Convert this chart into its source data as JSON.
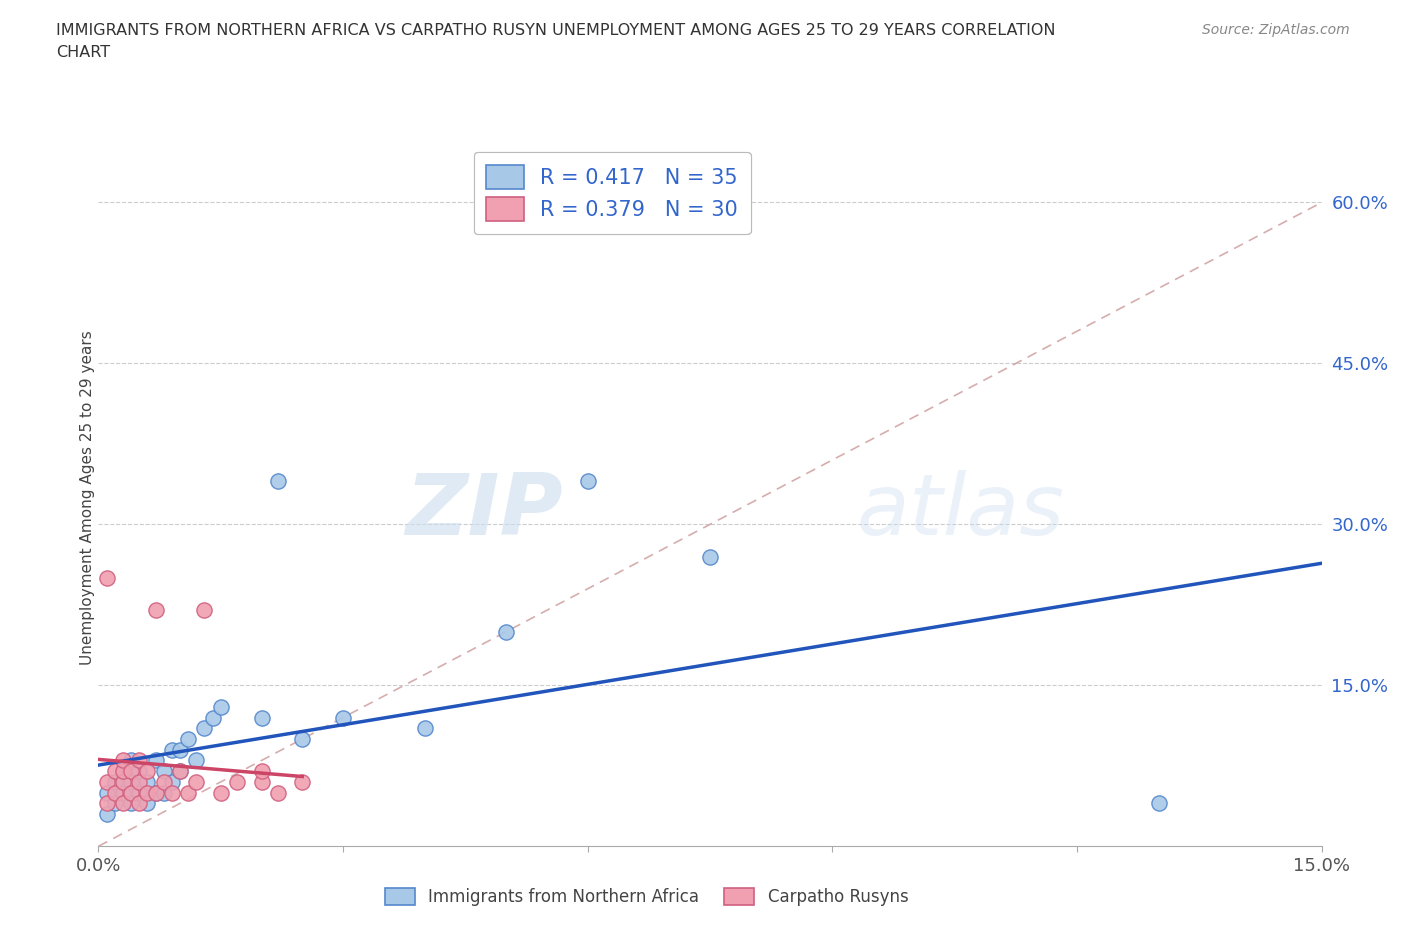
{
  "title_line1": "IMMIGRANTS FROM NORTHERN AFRICA VS CARPATHO RUSYN UNEMPLOYMENT AMONG AGES 25 TO 29 YEARS CORRELATION",
  "title_line2": "CHART",
  "source": "Source: ZipAtlas.com",
  "ylabel": "Unemployment Among Ages 25 to 29 years",
  "xlim": [
    0.0,
    0.15
  ],
  "ylim": [
    0.0,
    0.65
  ],
  "R_blue": 0.417,
  "N_blue": 35,
  "R_pink": 0.379,
  "N_pink": 30,
  "blue_scatter_color": "#a8c8e8",
  "blue_edge_color": "#5588cc",
  "pink_scatter_color": "#f0a0b0",
  "pink_edge_color": "#d06080",
  "blue_line_color": "#2255bb",
  "pink_line_color": "#cc4466",
  "diag_line_color": "#cc9999",
  "watermark_zip": "ZIP",
  "watermark_atlas": "atlas",
  "blue_scatter_x": [
    0.001,
    0.001,
    0.002,
    0.002,
    0.003,
    0.003,
    0.004,
    0.004,
    0.004,
    0.005,
    0.005,
    0.006,
    0.006,
    0.007,
    0.007,
    0.008,
    0.008,
    0.009,
    0.009,
    0.01,
    0.01,
    0.011,
    0.012,
    0.013,
    0.014,
    0.015,
    0.02,
    0.022,
    0.025,
    0.03,
    0.04,
    0.05,
    0.06,
    0.075,
    0.13
  ],
  "blue_scatter_y": [
    0.03,
    0.05,
    0.04,
    0.06,
    0.05,
    0.07,
    0.04,
    0.06,
    0.08,
    0.05,
    0.07,
    0.04,
    0.06,
    0.05,
    0.08,
    0.05,
    0.07,
    0.06,
    0.09,
    0.07,
    0.09,
    0.1,
    0.08,
    0.11,
    0.12,
    0.13,
    0.12,
    0.34,
    0.1,
    0.12,
    0.11,
    0.2,
    0.34,
    0.27,
    0.04
  ],
  "pink_scatter_x": [
    0.001,
    0.001,
    0.001,
    0.002,
    0.002,
    0.003,
    0.003,
    0.003,
    0.003,
    0.004,
    0.004,
    0.005,
    0.005,
    0.005,
    0.006,
    0.006,
    0.007,
    0.007,
    0.008,
    0.009,
    0.01,
    0.011,
    0.012,
    0.013,
    0.015,
    0.017,
    0.02,
    0.02,
    0.022,
    0.025
  ],
  "pink_scatter_y": [
    0.04,
    0.06,
    0.25,
    0.05,
    0.07,
    0.04,
    0.06,
    0.07,
    0.08,
    0.05,
    0.07,
    0.04,
    0.06,
    0.08,
    0.05,
    0.07,
    0.05,
    0.22,
    0.06,
    0.05,
    0.07,
    0.05,
    0.06,
    0.22,
    0.05,
    0.06,
    0.06,
    0.07,
    0.05,
    0.06
  ],
  "background_color": "#ffffff"
}
